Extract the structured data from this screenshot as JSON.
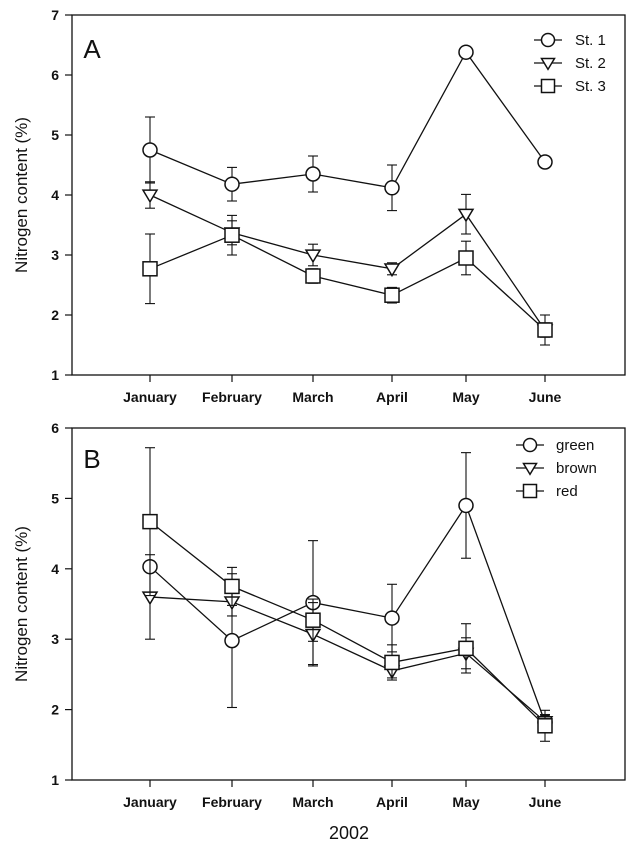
{
  "chart_data": [
    {
      "type": "line",
      "panel_label": "A",
      "ylabel": "Nitrogen content (%)",
      "xlabel": "",
      "categories": [
        "January",
        "February",
        "March",
        "April",
        "May",
        "June"
      ],
      "ylim": [
        1,
        7
      ],
      "yticks": [
        1,
        2,
        3,
        4,
        5,
        6,
        7
      ],
      "legend_position": "top-right",
      "series": [
        {
          "name": "St. 1",
          "marker": "circle",
          "values": [
            4.75,
            4.18,
            4.35,
            4.12,
            6.38,
            4.55
          ],
          "errors": [
            0.55,
            0.28,
            0.3,
            0.38,
            null,
            null
          ]
        },
        {
          "name": "St. 2",
          "marker": "triangle-down",
          "values": [
            4.0,
            3.37,
            3.0,
            2.77,
            3.68,
            1.75
          ],
          "errors": [
            0.22,
            0.2,
            0.18,
            0.1,
            0.33,
            0.12
          ]
        },
        {
          "name": "St. 3",
          "marker": "square",
          "values": [
            2.77,
            3.33,
            2.65,
            2.33,
            2.95,
            1.75
          ],
          "errors": [
            0.58,
            0.33,
            0.12,
            0.13,
            0.28,
            0.25
          ]
        }
      ]
    },
    {
      "type": "line",
      "panel_label": "B",
      "ylabel": "Nitrogen content (%)",
      "xlabel": "2002",
      "categories": [
        "January",
        "February",
        "March",
        "April",
        "May",
        "June"
      ],
      "ylim": [
        1,
        6
      ],
      "yticks": [
        1,
        2,
        3,
        4,
        5,
        6
      ],
      "legend_position": "top-right",
      "series": [
        {
          "name": "green",
          "marker": "circle",
          "values": [
            4.03,
            2.98,
            3.52,
            3.3,
            4.9,
            1.82
          ],
          "errors": [
            0.0,
            0.95,
            0.88,
            0.48,
            0.75,
            0.1
          ]
        },
        {
          "name": "brown",
          "marker": "triangle-down",
          "values": [
            3.6,
            3.53,
            3.07,
            2.55,
            2.8,
            1.83
          ],
          "errors": [
            0.6,
            0.2,
            0.45,
            0.1,
            0.22,
            0.1
          ]
        },
        {
          "name": "red",
          "marker": "square",
          "values": [
            4.67,
            3.75,
            3.27,
            2.67,
            2.87,
            1.77
          ],
          "errors": [
            1.05,
            0.27,
            0.3,
            0.25,
            0.35,
            0.22
          ]
        }
      ]
    }
  ]
}
